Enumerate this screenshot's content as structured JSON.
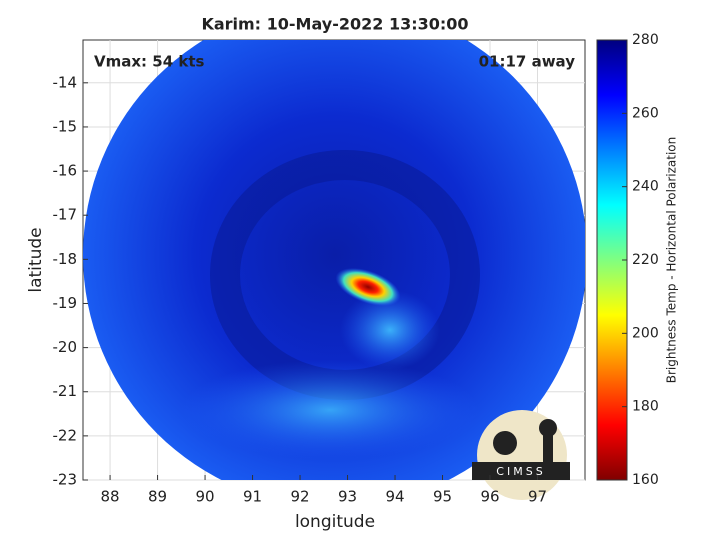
{
  "chart_data": {
    "type": "image",
    "title": "Karim: 10-May-2022 13:30:00",
    "annotations": [
      "Vmax: 54 kts",
      "01:17 away"
    ],
    "x_label": "longitude",
    "y_label": "latitude",
    "xlim": [
      87.43,
      98.0
    ],
    "xticks": [
      88,
      89,
      90,
      91,
      92,
      93,
      94,
      95,
      96,
      97
    ],
    "ylim": [
      -23,
      -13.03
    ],
    "yticks": [
      -23,
      -22,
      -21,
      -20,
      -19,
      -18,
      -17,
      -16,
      -15,
      -14
    ],
    "grid": true,
    "colorbar": {
      "label": "Brightness Temp - Horizontal Polarization",
      "lim": [
        160,
        280
      ],
      "ticks": [
        160,
        180,
        200,
        220,
        240,
        260,
        280
      ],
      "colormap": [
        "#800000",
        "#ff0000",
        "#ff8000",
        "#ffff00",
        "#80ff80",
        "#00ffff",
        "#0080ff",
        "#0000ff",
        "#000080"
      ]
    },
    "logo": "CIMSS"
  }
}
